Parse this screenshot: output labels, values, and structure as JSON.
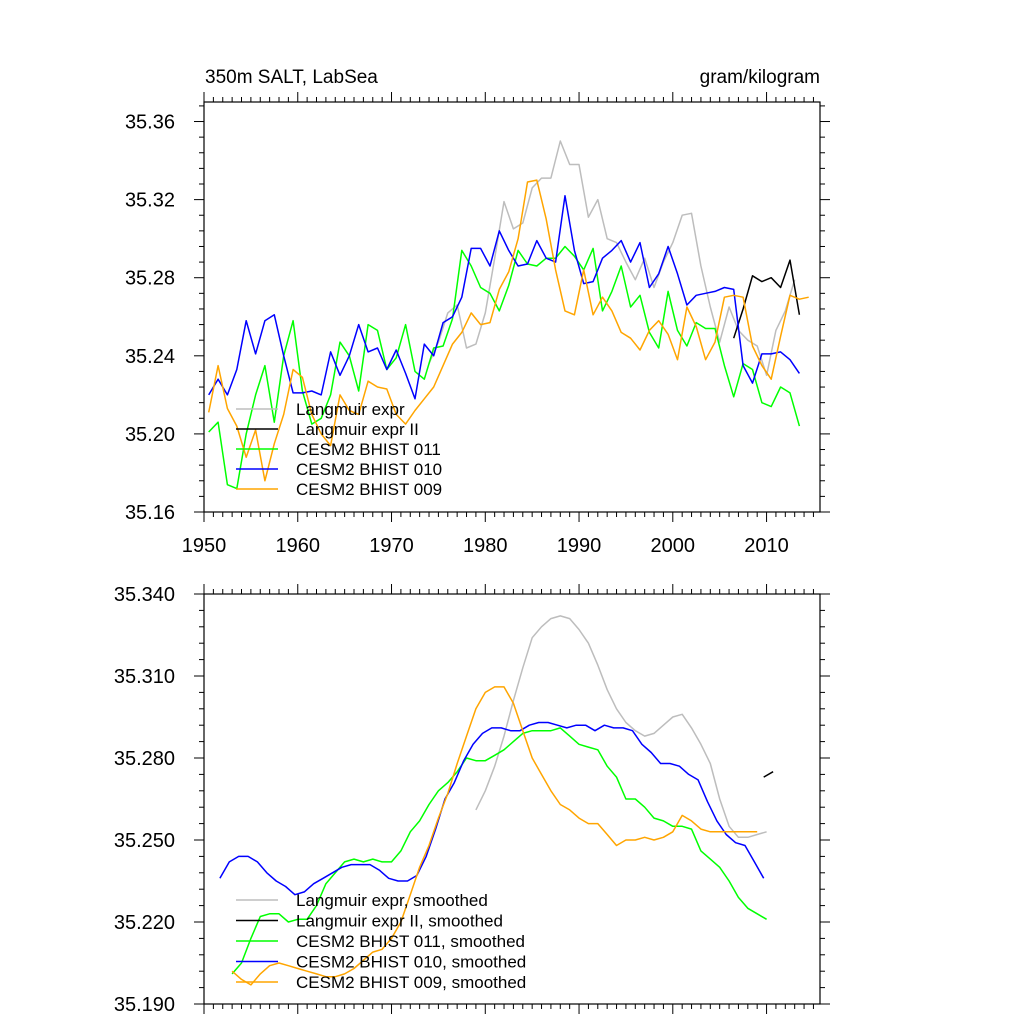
{
  "chart_data": [
    {
      "type": "line",
      "title_left": "350m SALT, LabSea",
      "title_right": "gram/kilogram",
      "xlim": [
        1950,
        2015.7
      ],
      "ylim": [
        35.16,
        35.37
      ],
      "xticks": [
        1950,
        1960,
        1970,
        1980,
        1990,
        2000,
        2010
      ],
      "xtick_labels": [
        "1950",
        "1960",
        "1970",
        "1980",
        "1990",
        "2000",
        "2010"
      ],
      "yticks": [
        35.16,
        35.2,
        35.24,
        35.28,
        35.32,
        35.36
      ],
      "ytick_labels": [
        "35.16",
        "35.20",
        "35.24",
        "35.28",
        "35.32",
        "35.36"
      ],
      "legend": [
        "Langmuir expr",
        "Langmuir expr II",
        "CESM2 BHIST 011",
        "CESM2 BHIST 010",
        "CESM2 BHIST 009"
      ],
      "series": [
        {
          "name": "Langmuir expr",
          "color": "#bdbdbd",
          "x_start": 1974,
          "values": [
            35.236,
            35.247,
            35.262,
            35.266,
            35.244,
            35.246,
            35.262,
            35.29,
            35.319,
            35.305,
            35.308,
            35.326,
            35.331,
            35.331,
            35.35,
            35.338,
            35.338,
            35.311,
            35.32,
            35.3,
            35.298,
            35.288,
            35.279,
            35.29,
            35.275,
            35.288,
            35.298,
            35.312,
            35.313,
            35.286,
            35.265,
            35.247,
            35.265,
            35.253,
            35.248,
            35.245,
            35.23,
            35.253,
            35.263,
            35.279
          ]
        },
        {
          "name": "Langmuir expr II",
          "color": "#000000",
          "x_start": 2006.5,
          "values": [
            35.249,
            35.264,
            35.281,
            35.278,
            35.28,
            35.275,
            35.289,
            35.261
          ]
        },
        {
          "name": "CESM2 BHIST 011",
          "color": "#00ff00",
          "x_start": 1950.5,
          "values": [
            35.201,
            35.206,
            35.174,
            35.172,
            35.2,
            35.22,
            35.235,
            35.206,
            35.24,
            35.258,
            35.222,
            35.205,
            35.208,
            35.22,
            35.247,
            35.24,
            35.222,
            35.256,
            35.253,
            35.233,
            35.239,
            35.256,
            35.232,
            35.228,
            35.244,
            35.245,
            35.259,
            35.294,
            35.286,
            35.275,
            35.272,
            35.263,
            35.276,
            35.294,
            35.287,
            35.286,
            35.29,
            35.29,
            35.296,
            35.291,
            35.284,
            35.295,
            35.263,
            35.273,
            35.286,
            35.265,
            35.271,
            35.252,
            35.244,
            35.273,
            35.253,
            35.245,
            35.257,
            35.254,
            35.254,
            35.235,
            35.219,
            35.236,
            35.233,
            35.216,
            35.214,
            35.224,
            35.221,
            35.204
          ]
        },
        {
          "name": "CESM2 BHIST 010",
          "color": "#0000ff",
          "x_start": 1950.5,
          "values": [
            35.22,
            35.228,
            35.22,
            35.233,
            35.258,
            35.241,
            35.258,
            35.261,
            35.24,
            35.221,
            35.221,
            35.222,
            35.22,
            35.242,
            35.23,
            35.24,
            35.256,
            35.242,
            35.244,
            35.233,
            35.243,
            35.231,
            35.218,
            35.246,
            35.24,
            35.257,
            35.26,
            35.27,
            35.295,
            35.295,
            35.286,
            35.304,
            35.294,
            35.286,
            35.287,
            35.299,
            35.29,
            35.288,
            35.322,
            35.294,
            35.277,
            35.278,
            35.29,
            35.294,
            35.299,
            35.288,
            35.298,
            35.275,
            35.282,
            35.296,
            35.282,
            35.266,
            35.271,
            35.272,
            35.273,
            35.275,
            35.274,
            35.235,
            35.226,
            35.241,
            35.241,
            35.242,
            35.238,
            35.231
          ]
        },
        {
          "name": "CESM2 BHIST 009",
          "color": "#ffa500",
          "x_start": 1950.5,
          "values": [
            35.211,
            35.235,
            35.213,
            35.204,
            35.188,
            35.202,
            35.176,
            35.195,
            35.21,
            35.233,
            35.229,
            35.21,
            35.2,
            35.194,
            35.22,
            35.212,
            35.21,
            35.227,
            35.224,
            35.223,
            35.21,
            35.205,
            35.212,
            35.218,
            35.224,
            35.235,
            35.246,
            35.252,
            35.262,
            35.256,
            35.257,
            35.274,
            35.283,
            35.3,
            35.329,
            35.33,
            35.31,
            35.284,
            35.263,
            35.261,
            35.284,
            35.261,
            35.27,
            35.263,
            35.252,
            35.249,
            35.243,
            35.253,
            35.258,
            35.251,
            35.238,
            35.265,
            35.255,
            35.238,
            35.247,
            35.27,
            35.271,
            35.27,
            35.245,
            35.235,
            35.228,
            35.25,
            35.271,
            35.269,
            35.27
          ]
        }
      ]
    },
    {
      "type": "line",
      "xlim": [
        1950,
        2015.7
      ],
      "ylim": [
        35.19,
        35.34
      ],
      "xticks": [
        1950,
        1960,
        1970,
        1980,
        1990,
        2000,
        2010
      ],
      "yticks": [
        35.19,
        35.22,
        35.25,
        35.28,
        35.31,
        35.34
      ],
      "ytick_labels": [
        "35.190",
        "35.220",
        "35.250",
        "35.280",
        "35.310",
        "35.340"
      ],
      "legend": [
        "Langmuir expr, smoothed",
        "Langmuir expr II, smoothed",
        "CESM2 BHIST 011, smoothed",
        "CESM2 BHIST 010, smoothed",
        "CESM2 BHIST 009, smoothed"
      ],
      "series": [
        {
          "name": "Langmuir expr, smoothed",
          "color": "#bdbdbd",
          "x_start": 1979,
          "values": [
            35.261,
            35.268,
            35.277,
            35.288,
            35.301,
            35.313,
            35.324,
            35.328,
            35.331,
            35.332,
            35.331,
            35.327,
            35.322,
            35.314,
            35.305,
            35.298,
            35.293,
            35.29,
            35.288,
            35.289,
            35.292,
            35.295,
            35.296,
            35.291,
            35.285,
            35.278,
            35.265,
            35.255,
            35.251,
            35.251,
            35.252,
            35.253
          ]
        },
        {
          "name": "Langmuir expr II, smoothed",
          "color": "#000000",
          "x_start": 2009.7,
          "values": [
            35.273,
            35.275
          ]
        },
        {
          "name": "CESM2 BHIST 011, smoothed",
          "color": "#00ff00",
          "x_start": 1953,
          "values": [
            35.201,
            35.205,
            35.214,
            35.222,
            35.223,
            35.223,
            35.22,
            35.221,
            35.221,
            35.226,
            35.234,
            35.238,
            35.242,
            35.243,
            35.242,
            35.243,
            35.242,
            35.242,
            35.246,
            35.253,
            35.257,
            35.263,
            35.268,
            35.271,
            35.275,
            35.28,
            35.279,
            35.279,
            35.281,
            35.283,
            35.286,
            35.289,
            35.29,
            35.29,
            35.29,
            35.291,
            35.288,
            35.285,
            35.284,
            35.283,
            35.277,
            35.273,
            35.265,
            35.265,
            35.262,
            35.258,
            35.257,
            35.255,
            35.255,
            35.254,
            35.246,
            35.243,
            35.24,
            35.235,
            35.229,
            35.225,
            35.223,
            35.221
          ]
        },
        {
          "name": "CESM2 BHIST 010, smoothed",
          "color": "#0000ff",
          "x_start": 1951.7,
          "values": [
            35.236,
            35.242,
            35.244,
            35.244,
            35.242,
            35.238,
            35.235,
            35.233,
            35.23,
            35.231,
            35.234,
            35.236,
            35.238,
            35.24,
            35.241,
            35.241,
            35.241,
            35.239,
            35.236,
            35.235,
            35.235,
            35.237,
            35.244,
            35.254,
            35.265,
            35.271,
            35.279,
            35.285,
            35.289,
            35.291,
            35.291,
            35.29,
            35.29,
            35.292,
            35.293,
            35.293,
            35.292,
            35.291,
            35.292,
            35.292,
            35.29,
            35.292,
            35.291,
            35.291,
            35.29,
            35.285,
            35.282,
            35.278,
            35.278,
            35.277,
            35.274,
            35.272,
            35.264,
            35.257,
            35.252,
            35.249,
            35.248,
            35.242,
            35.236
          ]
        },
        {
          "name": "CESM2 BHIST 009, smoothed",
          "color": "#ffa500",
          "x_start": 1953,
          "values": [
            35.202,
            35.199,
            35.197,
            35.201,
            35.204,
            35.205,
            35.204,
            35.203,
            35.202,
            35.201,
            35.2,
            35.2,
            35.201,
            35.203,
            35.206,
            35.209,
            35.21,
            35.214,
            35.22,
            35.23,
            35.24,
            35.248,
            35.258,
            35.267,
            35.278,
            35.288,
            35.298,
            35.304,
            35.306,
            35.306,
            35.3,
            35.29,
            35.28,
            35.274,
            35.268,
            35.263,
            35.261,
            35.258,
            35.256,
            35.256,
            35.252,
            35.248,
            35.25,
            35.25,
            35.251,
            35.25,
            35.251,
            35.253,
            35.259,
            35.257,
            35.254,
            35.253,
            35.253,
            35.253,
            35.253,
            35.253,
            35.253
          ]
        }
      ]
    }
  ]
}
